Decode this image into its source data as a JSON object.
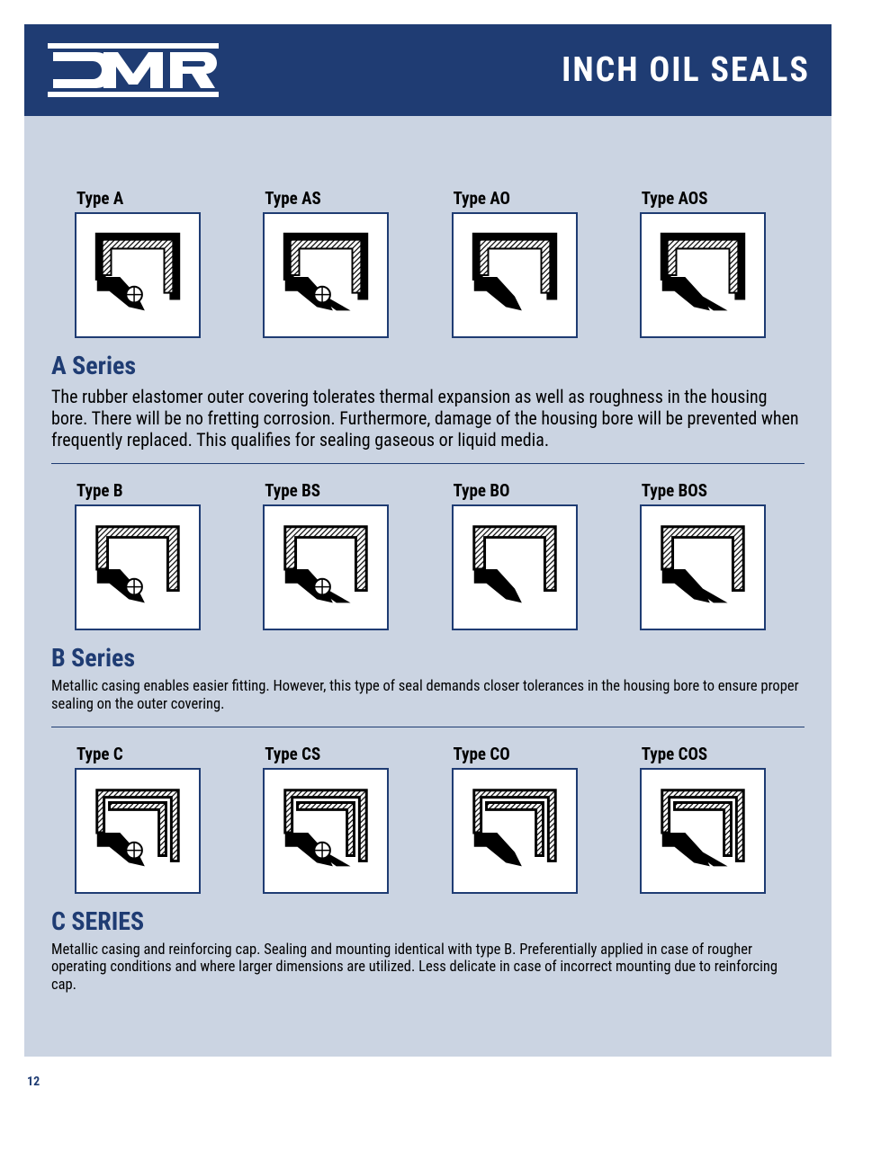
{
  "header": {
    "title": "INCH OIL SEALS",
    "logo_text": "DMR"
  },
  "colors": {
    "brand_blue": "#1f3c73",
    "page_bg": "#cbd4e2",
    "box_bg": "#ffffff",
    "text": "#000000"
  },
  "series": [
    {
      "id": "a",
      "title": "A Series",
      "title_font_size": 28,
      "desc": "The rubber elastomer outer covering tolerates thermal expansion as well as roughness in the housing bore. There will be no fretting corrosion. Furthermore, damage of the housing bore will be prevented when frequently replaced. This qualifies for sealing gaseous or liquid media.",
      "desc_font_size": 20,
      "types": [
        {
          "label": "Type A",
          "outer_style": "solid",
          "spring": true,
          "dust_lip": false
        },
        {
          "label": "Type AS",
          "outer_style": "solid",
          "spring": true,
          "dust_lip": true
        },
        {
          "label": "Type AO",
          "outer_style": "solid",
          "spring": false,
          "dust_lip": false
        },
        {
          "label": "Type AOS",
          "outer_style": "solid",
          "spring": false,
          "dust_lip": true
        }
      ]
    },
    {
      "id": "b",
      "title": "B Series",
      "title_font_size": 28,
      "desc": "Metallic casing enables easier fitting. However, this type of seal demands closer tolerances in the housing bore to ensure proper sealing on the outer covering.",
      "desc_font_size": 16.5,
      "types": [
        {
          "label": "Type B",
          "outer_style": "hatched",
          "spring": true,
          "dust_lip": false
        },
        {
          "label": "Type BS",
          "outer_style": "hatched",
          "spring": true,
          "dust_lip": true
        },
        {
          "label": "Type BO",
          "outer_style": "hatched",
          "spring": false,
          "dust_lip": false
        },
        {
          "label": "Type BOS",
          "outer_style": "hatched",
          "spring": false,
          "dust_lip": true
        }
      ]
    },
    {
      "id": "c",
      "title": "C SERIES",
      "title_font_size": 28,
      "desc": "Metallic casing and reinforcing cap. Sealing and mounting identical with type B. Preferentially applied in case of rougher operating conditions and where larger dimensions are utilized. Less delicate in case of incorrect mounting due to reinforcing cap.",
      "desc_font_size": 16.5,
      "types": [
        {
          "label": "Type C",
          "outer_style": "double",
          "spring": true,
          "dust_lip": false
        },
        {
          "label": "Type CS",
          "outer_style": "double",
          "spring": true,
          "dust_lip": true
        },
        {
          "label": "Type CO",
          "outer_style": "double",
          "spring": false,
          "dust_lip": false
        },
        {
          "label": "Type COS",
          "outer_style": "double",
          "spring": false,
          "dust_lip": true
        }
      ]
    }
  ],
  "page_number": "12"
}
